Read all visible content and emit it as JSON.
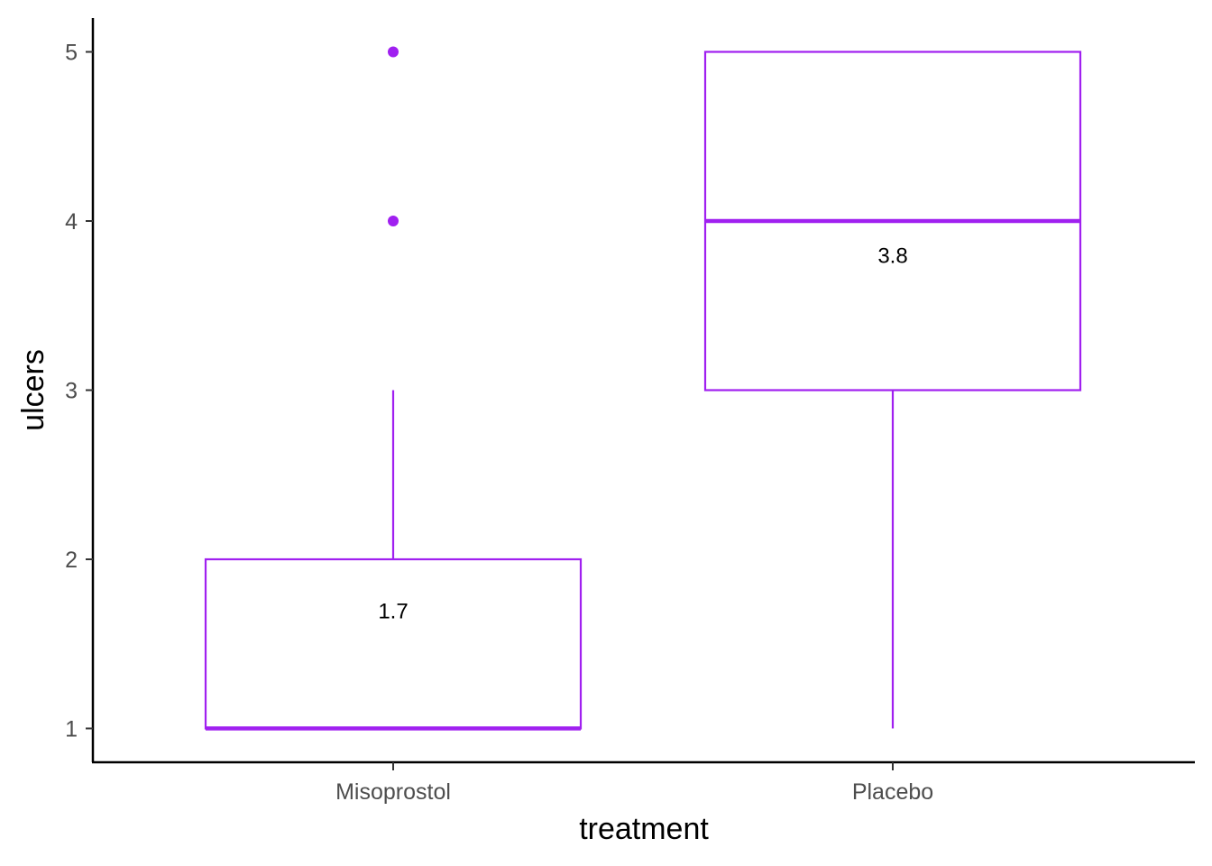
{
  "chart_data": {
    "type": "boxplot",
    "title": "",
    "xlabel": "treatment",
    "ylabel": "ulcers",
    "categories": [
      "Misoprostol",
      "Placebo"
    ],
    "ylim": [
      0.8,
      5.2
    ],
    "yticks": [
      1,
      2,
      3,
      4,
      5
    ],
    "grid": false,
    "legend": "none",
    "color": "#A020F0",
    "boxes": [
      {
        "category": "Misoprostol",
        "min": 1,
        "q1": 1,
        "median": 1,
        "q3": 2,
        "max": 3,
        "outliers": [
          4,
          5
        ],
        "mean": 1.7,
        "mean_label": "1.7"
      },
      {
        "category": "Placebo",
        "min": 1,
        "q1": 3,
        "median": 4,
        "q3": 5,
        "max": 5,
        "outliers": [],
        "mean": 3.8,
        "mean_label": "3.8"
      }
    ]
  }
}
